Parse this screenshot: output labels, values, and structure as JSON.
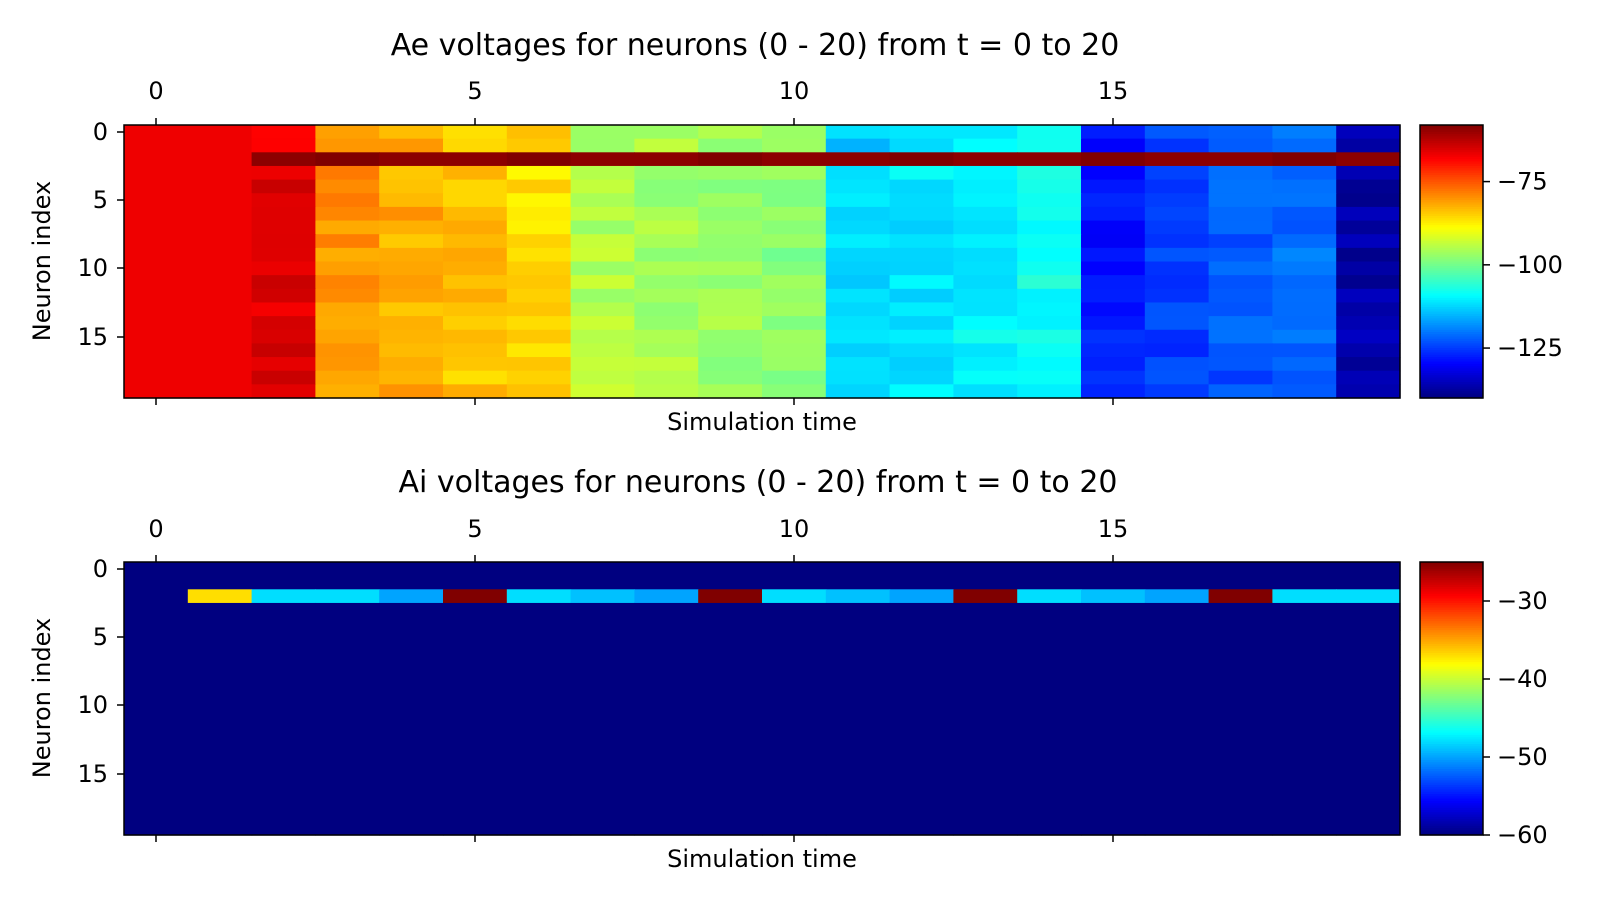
{
  "chart_data": [
    {
      "type": "heatmap",
      "title": "Ae voltages for neurons (0 - 20) from t = 0 to 20",
      "xlabel": "Simulation time",
      "ylabel": "Neuron index",
      "x_ticks": [
        0,
        5,
        10,
        15
      ],
      "x_tick_labels": [
        "0",
        "5",
        "10",
        "15"
      ],
      "y_ticks": [
        0,
        5,
        10,
        15
      ],
      "y_tick_labels": [
        "0",
        "5",
        "10",
        "15"
      ],
      "n_time": 20,
      "n_neurons": 20,
      "colormap": "jet",
      "vmin": -140,
      "vmax": -58,
      "colorbar_ticks": [
        -75,
        -100,
        -125
      ],
      "colorbar_tick_labels": [
        "−75",
        "−100",
        "−125"
      ],
      "column_base_values": [
        -67,
        -67,
        -66,
        -80,
        -82,
        -84,
        -86,
        -95,
        -96,
        -97,
        -98,
        -113,
        -111,
        -110,
        -108,
        -128,
        -125,
        -123,
        -121,
        -137
      ],
      "special_row": 2,
      "special_row_start": 2,
      "special_row_value": -59
    },
    {
      "type": "heatmap",
      "title": "Ai voltages for neurons (0 - 20) from t = 0 to 20",
      "xlabel": "Simulation time",
      "ylabel": "Neuron index",
      "x_ticks": [
        0,
        5,
        10,
        15
      ],
      "x_tick_labels": [
        "0",
        "5",
        "10",
        "15"
      ],
      "y_ticks": [
        0,
        5,
        10,
        15
      ],
      "y_tick_labels": [
        "0",
        "5",
        "10",
        "15"
      ],
      "n_time": 20,
      "n_neurons": 20,
      "colormap": "jet",
      "vmin": -60,
      "vmax": -25,
      "colorbar_ticks": [
        -30,
        -40,
        -50,
        -60
      ],
      "colorbar_tick_labels": [
        "−30",
        "−40",
        "−50",
        "−60"
      ],
      "background_value": -60,
      "special_row": 2,
      "special_row_values": [
        -60,
        -37,
        -48,
        -48,
        -50,
        -25,
        -48,
        -49,
        -50,
        -25,
        -48,
        -49,
        -50,
        -25,
        -48,
        -49,
        -50,
        -25,
        -48,
        -48
      ]
    }
  ]
}
